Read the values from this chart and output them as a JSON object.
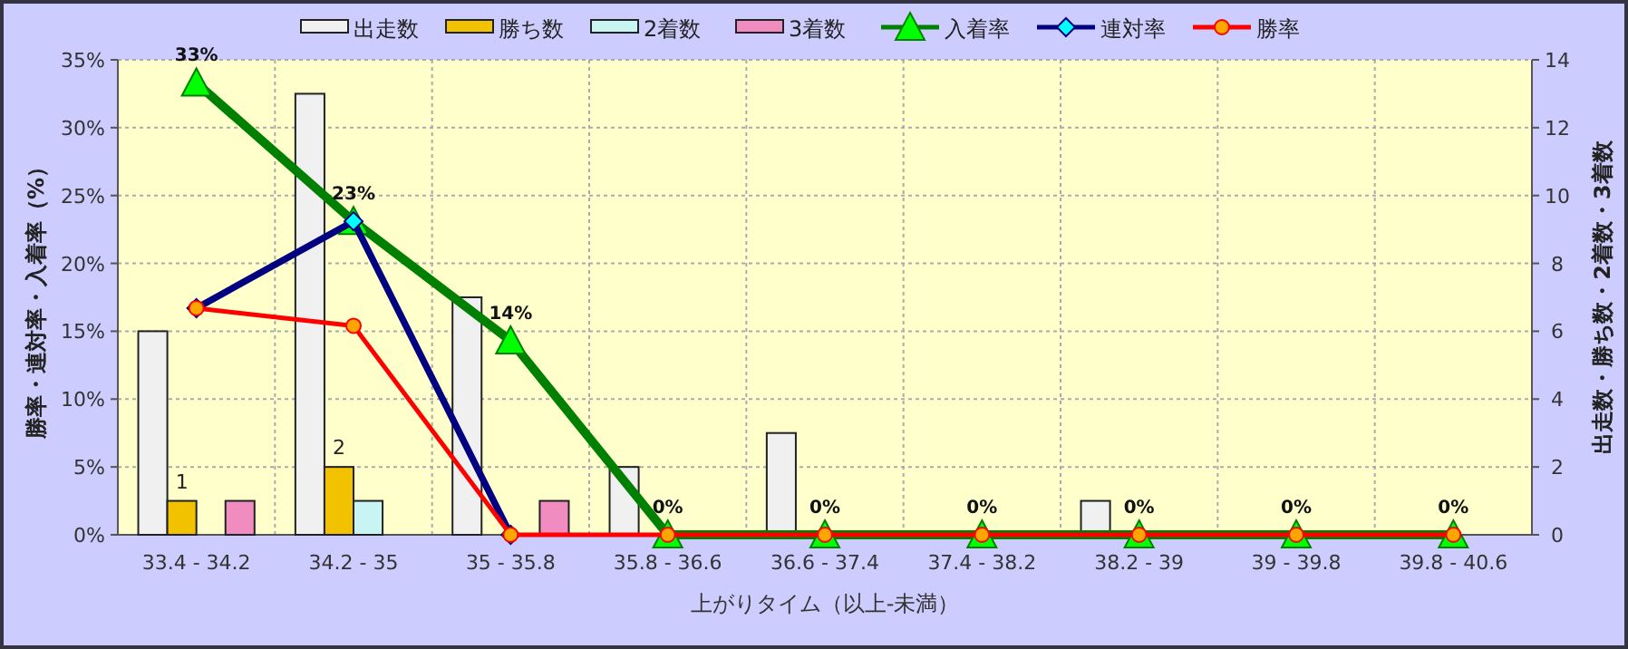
{
  "chart_data": {
    "type": "bar",
    "categories": [
      "33.4 - 34.2",
      "34.2 - 35",
      "35 - 35.8",
      "35.8 - 36.6",
      "36.6 - 37.4",
      "37.4 - 38.2",
      "38.2 - 39",
      "39 - 39.8",
      "39.8 - 40.6"
    ],
    "xlabel": "上がりタイム（以上-未満）",
    "ylabel": "勝率・連対率・入着率（%）",
    "y2label": "出走数・勝ち数・2着数・3着数",
    "ylim": [
      0,
      35
    ],
    "yticks": [
      {
        "value": 0,
        "label": "0%"
      },
      {
        "value": 5,
        "label": "5%"
      },
      {
        "value": 10,
        "label": "10%"
      },
      {
        "value": 15,
        "label": "15%"
      },
      {
        "value": 20,
        "label": "20%"
      },
      {
        "value": 25,
        "label": "25%"
      },
      {
        "value": 30,
        "label": "30%"
      },
      {
        "value": 35,
        "label": "35%"
      }
    ],
    "y2lim": [
      0,
      14
    ],
    "y2ticks": [
      0,
      2,
      4,
      6,
      8,
      10,
      12,
      14
    ],
    "grid": true,
    "legend": "top",
    "series": [
      {
        "name": "出走数",
        "axis": "y2",
        "color": "#f0f0f0",
        "values": [
          6,
          13,
          7,
          2,
          3,
          0,
          1,
          0,
          0
        ]
      },
      {
        "name": "勝ち数",
        "axis": "y2",
        "color": "#f2c200",
        "values": [
          1,
          2,
          0,
          0,
          0,
          0,
          0,
          0,
          0
        ],
        "value_labels": [
          "1",
          "2",
          null,
          null,
          null,
          null,
          null,
          null,
          null
        ]
      },
      {
        "name": "2着数",
        "axis": "y2",
        "color": "#c8f4f4",
        "values": [
          0,
          1,
          0,
          0,
          0,
          0,
          0,
          0,
          0
        ]
      },
      {
        "name": "3着数",
        "axis": "y2",
        "color": "#f08cc0",
        "values": [
          1,
          0,
          1,
          0,
          0,
          0,
          0,
          0,
          0
        ]
      },
      {
        "name": "入着率",
        "type": "line",
        "color": "#008000",
        "marker": "triangle",
        "values": [
          33.3,
          23.1,
          14.3,
          0,
          0,
          0,
          0,
          0,
          0
        ],
        "value_labels": [
          "33%",
          "23%",
          "14%",
          "0%",
          "0%",
          "0%",
          "0%",
          "0%",
          "0%"
        ]
      },
      {
        "name": "連対率",
        "type": "line",
        "color": "#000080",
        "marker": "diamond",
        "values": [
          16.7,
          23.1,
          0,
          null,
          null,
          null,
          null,
          null,
          null
        ]
      },
      {
        "name": "勝率",
        "type": "line",
        "color": "#ff0000",
        "marker": "circle",
        "values": [
          16.7,
          15.4,
          0,
          0,
          0,
          0,
          0,
          0,
          0
        ]
      }
    ]
  }
}
